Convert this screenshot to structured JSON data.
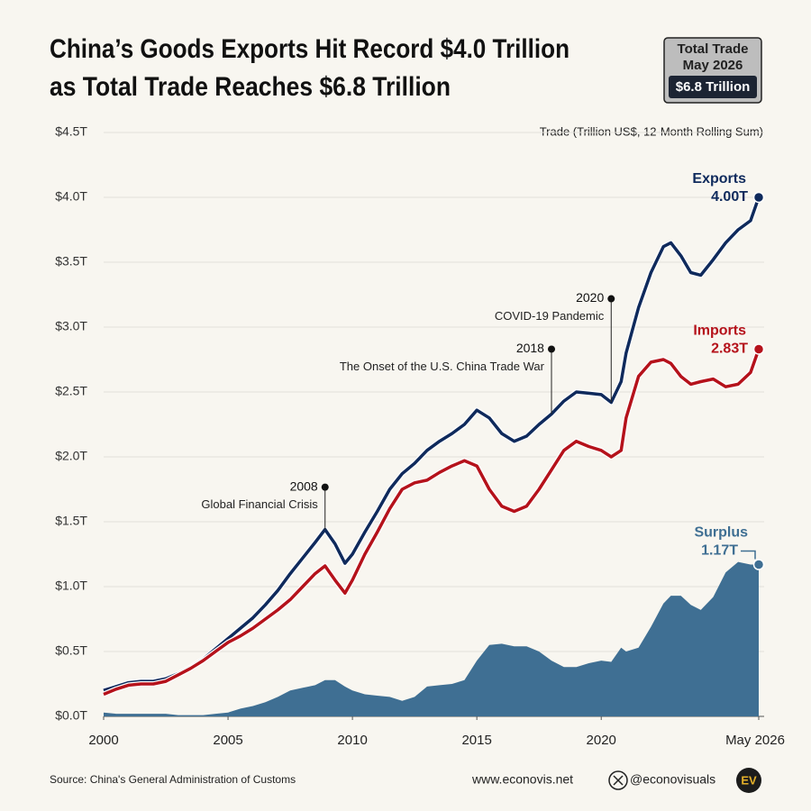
{
  "chart_data": {
    "type": "line",
    "title": [
      "China’s Goods Exports Hit Record $4.0 Trillion",
      "as Total Trade Reaches $6.8 Trillion"
    ],
    "subtitle": "Trade (Trillion US$, 12-Month Rolling Sum)",
    "badge": {
      "line1": "Total Trade",
      "line2": "May 2026",
      "value": "$6.8 Trillion"
    },
    "x": [
      2000,
      2000.5,
      2001,
      2001.5,
      2002,
      2002.5,
      2003,
      2003.5,
      2004,
      2004.5,
      2005,
      2005.5,
      2006,
      2006.5,
      2007,
      2007.5,
      2008,
      2008.5,
      2008.9,
      2009.3,
      2009.7,
      2010,
      2010.5,
      2011,
      2011.5,
      2012,
      2012.5,
      2013,
      2013.5,
      2014,
      2014.5,
      2015,
      2015.5,
      2016,
      2016.5,
      2017,
      2017.5,
      2018,
      2018.5,
      2019,
      2019.5,
      2020,
      2020.4,
      2020.8,
      2021,
      2021.5,
      2022,
      2022.5,
      2022.8,
      2023.2,
      2023.6,
      2024,
      2024.5,
      2025,
      2025.5,
      2026,
      2026.33
    ],
    "series": [
      {
        "name": "Exports",
        "color": "#0f2a5c",
        "kind": "line",
        "values": [
          0.2,
          0.23,
          0.26,
          0.27,
          0.27,
          0.29,
          0.33,
          0.38,
          0.44,
          0.52,
          0.6,
          0.68,
          0.76,
          0.86,
          0.97,
          1.1,
          1.22,
          1.34,
          1.44,
          1.33,
          1.18,
          1.25,
          1.42,
          1.58,
          1.75,
          1.87,
          1.95,
          2.05,
          2.12,
          2.18,
          2.25,
          2.36,
          2.3,
          2.18,
          2.12,
          2.16,
          2.25,
          2.33,
          2.43,
          2.5,
          2.49,
          2.48,
          2.42,
          2.58,
          2.8,
          3.15,
          3.42,
          3.62,
          3.65,
          3.55,
          3.42,
          3.4,
          3.52,
          3.65,
          3.75,
          3.82,
          4.0
        ],
        "value_labels": [
          null,
          null,
          null,
          null,
          null,
          null,
          null,
          null,
          null,
          null,
          null,
          null,
          null,
          null,
          null,
          null,
          null,
          null,
          null,
          null,
          null,
          null,
          null,
          null,
          null,
          null,
          null,
          null,
          null,
          null,
          null,
          null,
          null,
          null,
          null,
          null,
          null,
          null,
          null,
          null,
          null,
          null,
          null,
          null,
          null,
          null,
          null,
          null,
          null,
          null,
          null,
          null,
          null,
          null,
          null,
          null,
          "4.00T"
        ]
      },
      {
        "name": "Imports",
        "color": "#b5121b",
        "kind": "line",
        "values": [
          0.17,
          0.21,
          0.24,
          0.25,
          0.25,
          0.27,
          0.32,
          0.37,
          0.43,
          0.5,
          0.57,
          0.62,
          0.68,
          0.75,
          0.82,
          0.9,
          1.0,
          1.1,
          1.16,
          1.05,
          0.95,
          1.05,
          1.25,
          1.42,
          1.6,
          1.75,
          1.8,
          1.82,
          1.88,
          1.93,
          1.97,
          1.93,
          1.75,
          1.62,
          1.58,
          1.62,
          1.75,
          1.9,
          2.05,
          2.12,
          2.08,
          2.05,
          2.0,
          2.05,
          2.3,
          2.62,
          2.73,
          2.75,
          2.72,
          2.62,
          2.56,
          2.58,
          2.6,
          2.54,
          2.56,
          2.65,
          2.83
        ],
        "value_labels": [
          null,
          null,
          null,
          null,
          null,
          null,
          null,
          null,
          null,
          null,
          null,
          null,
          null,
          null,
          null,
          null,
          null,
          null,
          null,
          null,
          null,
          null,
          null,
          null,
          null,
          null,
          null,
          null,
          null,
          null,
          null,
          null,
          null,
          null,
          null,
          null,
          null,
          null,
          null,
          null,
          null,
          null,
          null,
          null,
          null,
          null,
          null,
          null,
          null,
          null,
          null,
          null,
          null,
          null,
          null,
          null,
          "2.83T"
        ]
      },
      {
        "name": "Surplus",
        "color": "#3f6f93",
        "kind": "area",
        "values": [
          0.03,
          0.02,
          0.02,
          0.02,
          0.02,
          0.02,
          0.01,
          0.01,
          0.01,
          0.02,
          0.03,
          0.06,
          0.08,
          0.11,
          0.15,
          0.2,
          0.22,
          0.24,
          0.28,
          0.28,
          0.23,
          0.2,
          0.17,
          0.16,
          0.15,
          0.12,
          0.15,
          0.23,
          0.24,
          0.25,
          0.28,
          0.43,
          0.55,
          0.56,
          0.54,
          0.54,
          0.5,
          0.43,
          0.38,
          0.38,
          0.41,
          0.43,
          0.42,
          0.53,
          0.5,
          0.53,
          0.69,
          0.87,
          0.93,
          0.93,
          0.86,
          0.82,
          0.92,
          1.11,
          1.19,
          1.17,
          1.17
        ],
        "value_labels": [
          null,
          null,
          null,
          null,
          null,
          null,
          null,
          null,
          null,
          null,
          null,
          null,
          null,
          null,
          null,
          null,
          null,
          null,
          null,
          null,
          null,
          null,
          null,
          null,
          null,
          null,
          null,
          null,
          null,
          null,
          null,
          null,
          null,
          null,
          null,
          null,
          null,
          null,
          null,
          null,
          null,
          null,
          null,
          null,
          null,
          null,
          null,
          null,
          null,
          null,
          null,
          null,
          null,
          null,
          null,
          null,
          "1.17T"
        ]
      }
    ],
    "xlim": [
      2000,
      2026.33
    ],
    "xticks": [
      2000,
      2005,
      2010,
      2015,
      2020,
      {
        "value": 2026.33,
        "label": "May 2026"
      }
    ],
    "ylim": [
      0,
      4.5
    ],
    "yticks": [
      {
        "value": 0,
        "label": "$0.0T"
      },
      {
        "value": 0.5,
        "label": "$0.5T"
      },
      {
        "value": 1,
        "label": "$1.0T"
      },
      {
        "value": 1.5,
        "label": "$1.5T"
      },
      {
        "value": 2,
        "label": "$2.0T"
      },
      {
        "value": 2.5,
        "label": "$2.5T"
      },
      {
        "value": 3,
        "label": "$3.0T"
      },
      {
        "value": 3.5,
        "label": "$3.5T"
      },
      {
        "value": 4,
        "label": "$4.0T"
      },
      {
        "value": 4.5,
        "label": "$4.5T"
      }
    ],
    "grid": true,
    "annotations": [
      {
        "x": 2008.9,
        "year": "2008",
        "text": "Global Financial Crisis"
      },
      {
        "x": 2018,
        "year": "2018",
        "text": "The Onset of the U.S. China Trade War"
      },
      {
        "x": 2020.4,
        "year": "2020",
        "text": "COVID-19 Pandemic"
      }
    ],
    "source": "Source: China's General Administration of Customs",
    "website": "www.econovis.net",
    "handle": "@econovisuals",
    "logo": "EV"
  }
}
